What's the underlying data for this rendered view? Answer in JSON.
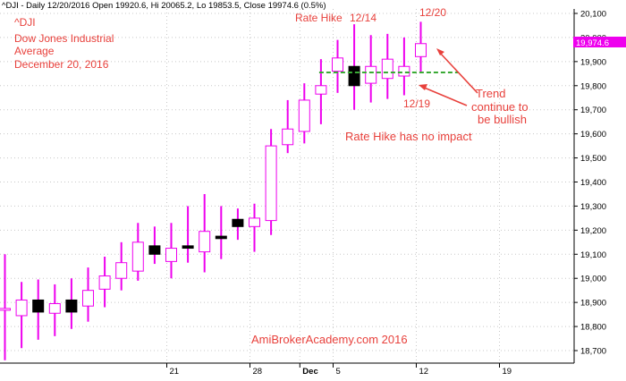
{
  "header": {
    "text": "^DJI - Daily 12/20/2016 Open 19920.6, Hi 20065.2, Lo 19853.5, Close 19974.6 (0.5%)"
  },
  "info_block": {
    "lines": [
      "^DJI",
      "Dow Jones Industrial",
      "Average",
      "December 20, 2016"
    ]
  },
  "annotations": {
    "rate_hike": "Rate Hike",
    "date_1214": "12/14",
    "date_1220": "12/20",
    "date_1219": "12/19",
    "trend_lines": [
      "Trend",
      "continue to",
      "be bullish"
    ],
    "no_impact": "Rate Hike has no impact",
    "watermark": "AmiBrokerAcademy.com  2016"
  },
  "price_badge": "19,974.6",
  "colors": {
    "candle": "#ee00ee",
    "down_fill": "#000000",
    "up_fill": "#ffffff",
    "annotation": "#e8413c",
    "badge": "#ee00ee",
    "support_line": "#3aaa35",
    "grid": "#c8c8c8"
  },
  "chart_data": {
    "type": "candlestick",
    "ylim": [
      18650,
      20120
    ],
    "y_ticks": [
      18700,
      18800,
      18900,
      19000,
      19100,
      19200,
      19300,
      19400,
      19500,
      19600,
      19700,
      19800,
      19900,
      20000,
      20100
    ],
    "y_tick_labels": [
      "18,700",
      "18,800",
      "18,900",
      "19,000",
      "19,100",
      "19,200",
      "19,300",
      "19,400",
      "19,500",
      "19,600",
      "19,700",
      "19,800",
      "19,900",
      "20,000",
      "20,100"
    ],
    "x_tick_labels": [
      {
        "label": "21",
        "index": 10
      },
      {
        "label": "28",
        "index": 15
      },
      {
        "label": "Dec",
        "index": 18
      },
      {
        "label": "5",
        "index": 20
      },
      {
        "label": "12",
        "index": 25
      },
      {
        "label": "19",
        "index": 30
      }
    ],
    "candles": [
      {
        "open": 18875,
        "high": 19100,
        "low": 18660,
        "close": 18875
      },
      {
        "open": 18845,
        "high": 18985,
        "low": 18710,
        "close": 18910
      },
      {
        "open": 18910,
        "high": 18995,
        "low": 18745,
        "close": 18860
      },
      {
        "open": 18855,
        "high": 18975,
        "low": 18760,
        "close": 18895
      },
      {
        "open": 18910,
        "high": 19000,
        "low": 18790,
        "close": 18860
      },
      {
        "open": 18885,
        "high": 19045,
        "low": 18820,
        "close": 18950
      },
      {
        "open": 18955,
        "high": 19090,
        "low": 18880,
        "close": 19010
      },
      {
        "open": 19000,
        "high": 19150,
        "low": 18950,
        "close": 19065
      },
      {
        "open": 19030,
        "high": 19230,
        "low": 18990,
        "close": 19150
      },
      {
        "open": 19135,
        "high": 19215,
        "low": 19060,
        "close": 19100
      },
      {
        "open": 19070,
        "high": 19230,
        "low": 19000,
        "close": 19125
      },
      {
        "open": 19135,
        "high": 19300,
        "low": 19065,
        "close": 19125
      },
      {
        "open": 19110,
        "high": 19350,
        "low": 19025,
        "close": 19195
      },
      {
        "open": 19175,
        "high": 19300,
        "low": 19080,
        "close": 19165
      },
      {
        "open": 19245,
        "high": 19290,
        "low": 19160,
        "close": 19215
      },
      {
        "open": 19215,
        "high": 19310,
        "low": 19110,
        "close": 19250
      },
      {
        "open": 19240,
        "high": 19620,
        "low": 19180,
        "close": 19550
      },
      {
        "open": 19555,
        "high": 19740,
        "low": 19520,
        "close": 19620
      },
      {
        "open": 19610,
        "high": 19810,
        "low": 19560,
        "close": 19740
      },
      {
        "open": 19765,
        "high": 19910,
        "low": 19640,
        "close": 19800
      },
      {
        "open": 19860,
        "high": 19990,
        "low": 19770,
        "close": 19915
      },
      {
        "open": 19880,
        "high": 20055,
        "low": 19700,
        "close": 19800
      },
      {
        "open": 19810,
        "high": 20010,
        "low": 19730,
        "close": 19880
      },
      {
        "open": 19830,
        "high": 20015,
        "low": 19745,
        "close": 19910
      },
      {
        "open": 19840,
        "high": 20000,
        "low": 19760,
        "close": 19880
      },
      {
        "open": 19920.6,
        "high": 20065.2,
        "low": 19853.5,
        "close": 19974.6
      }
    ],
    "support_level": 19855
  }
}
